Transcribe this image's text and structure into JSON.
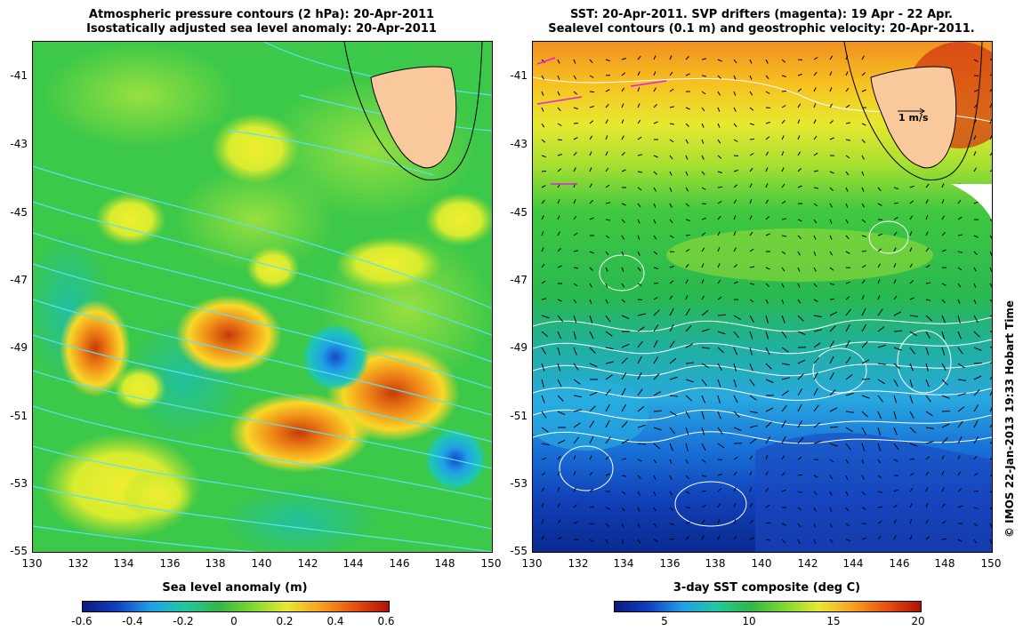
{
  "left": {
    "title_line1": "Atmospheric pressure contours (2 hPa): 20-Apr-2011",
    "title_line2": "Isostatically adjusted sea level anomaly: 20-Apr-2011",
    "colorbar_label": "Sea level anomaly (m)",
    "colorbar_ticks": [
      "-0.6",
      "-0.4",
      "-0.2",
      "0",
      "0.2",
      "0.4",
      "0.6"
    ]
  },
  "right": {
    "title_line1": "SST: 20-Apr-2011. SVP drifters (magenta): 19 Apr - 22 Apr.",
    "title_line2": "Sealevel contours (0.1 m) and geostrophic velocity: 20-Apr-2011.",
    "colorbar_label": "3-day SST composite (deg C)",
    "colorbar_ticks": [
      "5",
      "10",
      "15",
      "20"
    ],
    "velocity_scale_label": "1 m/s"
  },
  "axes": {
    "x_ticks": [
      "130",
      "132",
      "134",
      "136",
      "138",
      "140",
      "142",
      "144",
      "146",
      "148",
      "150"
    ],
    "y_ticks": [
      "-41",
      "-43",
      "-45",
      "-47",
      "-49",
      "-51",
      "-53",
      "-55"
    ]
  },
  "credit": "© IMOS 22-Jan-2013 19:33 Hobart Time",
  "colors": {
    "land": "#f9c89b",
    "pressure_contour": "#5ee0f0",
    "drifter": "#e020e0"
  }
}
